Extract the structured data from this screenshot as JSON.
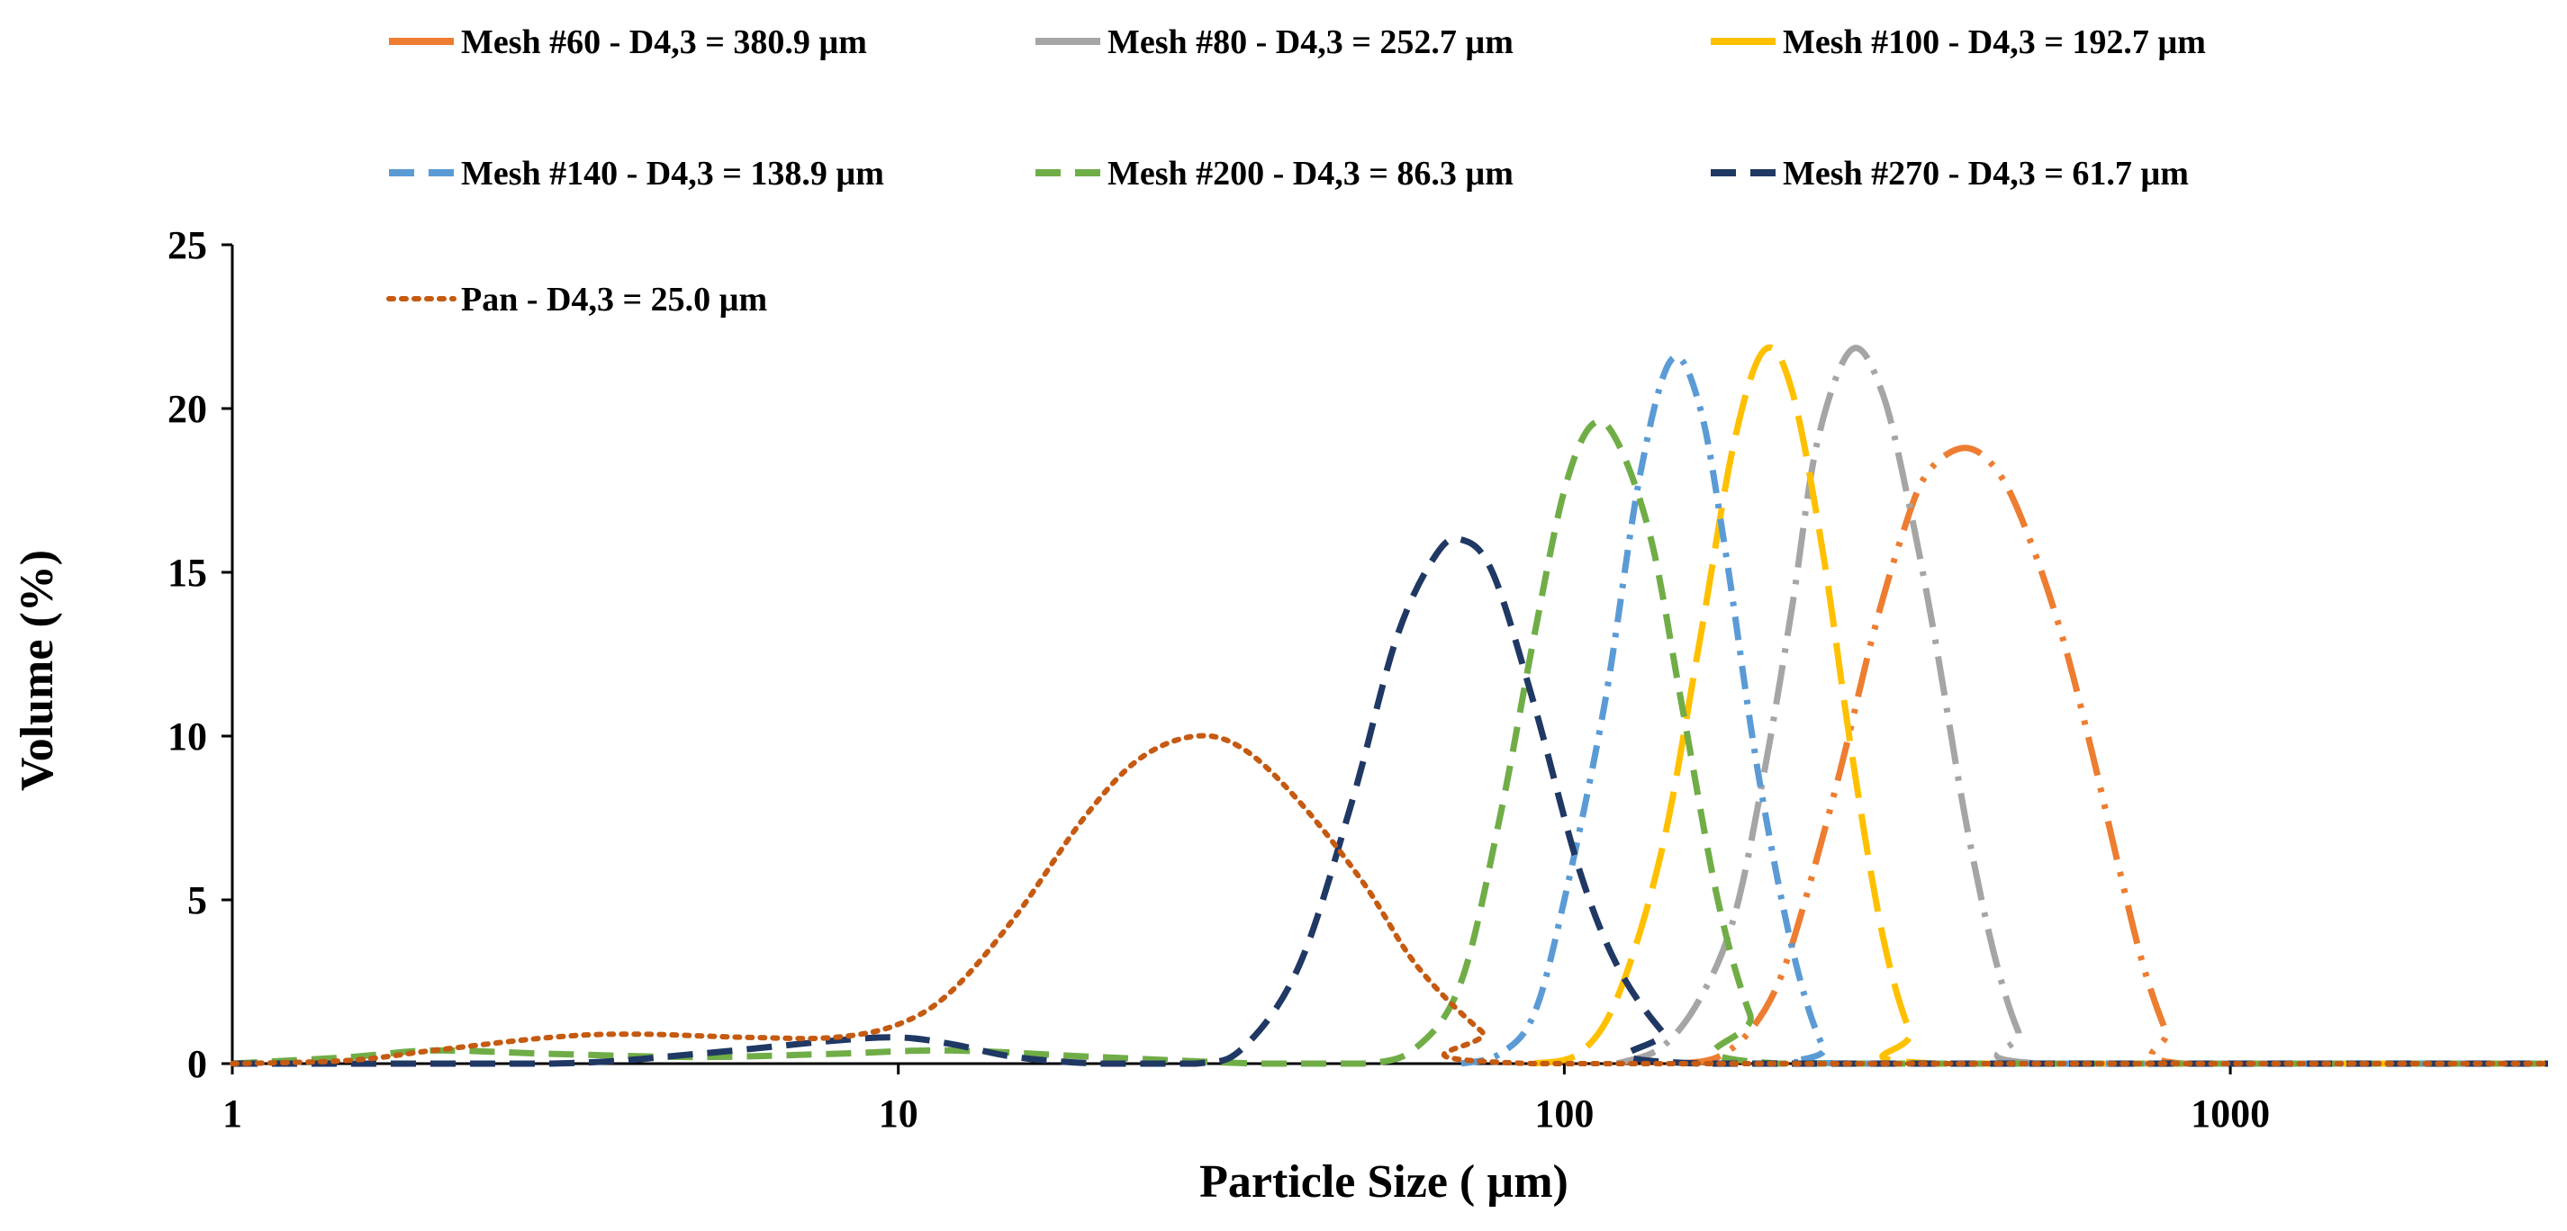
{
  "chart_data": {
    "type": "line",
    "title": "",
    "xlabel": "Particle Size ( µm)",
    "ylabel": "Volume (%)",
    "xscale": "log",
    "xlim": [
      1,
      3000
    ],
    "ylim": [
      0,
      25
    ],
    "x_ticks": [
      1,
      10,
      100,
      1000
    ],
    "x_tick_labels": [
      "1",
      "10",
      "100",
      "1000"
    ],
    "y_ticks": [
      0,
      5,
      10,
      15,
      20,
      25
    ],
    "y_tick_labels": [
      "0",
      "5",
      "10",
      "15",
      "20",
      "25"
    ],
    "grid": false,
    "legend_position": "top",
    "series": [
      {
        "name": "Mesh #60 - D4,3 = 380.9  µm",
        "color": "#ED7D31",
        "dash": "long-dash-dot-dot",
        "points": [
          [
            150,
            0
          ],
          [
            170,
            0.2
          ],
          [
            190,
            1
          ],
          [
            210,
            2.5
          ],
          [
            230,
            5
          ],
          [
            260,
            9
          ],
          [
            290,
            13
          ],
          [
            320,
            16
          ],
          [
            350,
            18
          ],
          [
            400,
            18.8
          ],
          [
            450,
            18
          ],
          [
            500,
            16
          ],
          [
            560,
            13
          ],
          [
            620,
            9.5
          ],
          [
            680,
            6
          ],
          [
            740,
            3
          ],
          [
            800,
            1
          ],
          [
            850,
            0
          ],
          [
            3000,
            0
          ]
        ]
      },
      {
        "name": "Mesh #80 - D4,3 = 252.7 µm",
        "color": "#A5A5A5",
        "dash": "long-dash-dot",
        "points": [
          [
            120,
            0
          ],
          [
            140,
            0.5
          ],
          [
            160,
            2
          ],
          [
            180,
            4.5
          ],
          [
            200,
            9
          ],
          [
            220,
            14
          ],
          [
            240,
            19
          ],
          [
            270,
            21.8
          ],
          [
            300,
            20.5
          ],
          [
            330,
            17
          ],
          [
            360,
            13
          ],
          [
            400,
            7.5
          ],
          [
            440,
            3.5
          ],
          [
            480,
            1
          ],
          [
            520,
            0
          ],
          [
            3000,
            0
          ]
        ]
      },
      {
        "name": "Mesh #100 - D4,3 = 192.7 µm",
        "color": "#FFC000",
        "dash": "long-dash",
        "points": [
          [
            90,
            0
          ],
          [
            105,
            0.3
          ],
          [
            120,
            2
          ],
          [
            140,
            6.5
          ],
          [
            160,
            13
          ],
          [
            180,
            19
          ],
          [
            200,
            21.8
          ],
          [
            220,
            20.5
          ],
          [
            245,
            15.5
          ],
          [
            270,
            9.5
          ],
          [
            300,
            4
          ],
          [
            330,
            1
          ],
          [
            360,
            0
          ],
          [
            3000,
            0
          ]
        ]
      },
      {
        "name": "Mesh #140 - D4,3 = 138.9 µm",
        "color": "#5B9BD5",
        "dash": "dash-dot",
        "points": [
          [
            70,
            0
          ],
          [
            80,
            0.3
          ],
          [
            90,
            1.5
          ],
          [
            100,
            5
          ],
          [
            115,
            11
          ],
          [
            130,
            18
          ],
          [
            145,
            21.5
          ],
          [
            160,
            20
          ],
          [
            175,
            15.5
          ],
          [
            195,
            9
          ],
          [
            220,
            3.5
          ],
          [
            245,
            0.5
          ],
          [
            270,
            0
          ],
          [
            3000,
            0
          ]
        ]
      },
      {
        "name": "Mesh #200 - D4,3 = 86.3 µm",
        "color": "#70AD47",
        "dash": "dash",
        "points": [
          [
            1,
            0
          ],
          [
            1.5,
            0.2
          ],
          [
            2,
            0.4
          ],
          [
            3,
            0.3
          ],
          [
            5,
            0.2
          ],
          [
            8,
            0.3
          ],
          [
            12,
            0.4
          ],
          [
            20,
            0.2
          ],
          [
            35,
            0
          ],
          [
            50,
            0
          ],
          [
            60,
            0.5
          ],
          [
            70,
            2.5
          ],
          [
            80,
            7.5
          ],
          [
            90,
            13
          ],
          [
            100,
            17.5
          ],
          [
            110,
            19.5
          ],
          [
            120,
            19
          ],
          [
            135,
            16
          ],
          [
            150,
            11
          ],
          [
            170,
            5
          ],
          [
            190,
            1.5
          ],
          [
            210,
            0
          ],
          [
            3000,
            0
          ]
        ]
      },
      {
        "name": "Mesh #270 - D4,3 = 61.7 µm",
        "color": "#203864",
        "dash": "dash",
        "points": [
          [
            1,
            0
          ],
          [
            3,
            0
          ],
          [
            5,
            0.3
          ],
          [
            8,
            0.7
          ],
          [
            10,
            0.8
          ],
          [
            12,
            0.6
          ],
          [
            15,
            0.2
          ],
          [
            20,
            0
          ],
          [
            28,
            0
          ],
          [
            33,
            0.5
          ],
          [
            40,
            3
          ],
          [
            48,
            8
          ],
          [
            56,
            13
          ],
          [
            64,
            15.5
          ],
          [
            70,
            16
          ],
          [
            78,
            15
          ],
          [
            90,
            11
          ],
          [
            105,
            6
          ],
          [
            120,
            3
          ],
          [
            140,
            1
          ],
          [
            160,
            0
          ],
          [
            3000,
            0
          ]
        ]
      },
      {
        "name": "Pan - D4,3 = 25.0  µm",
        "color": "#C55A11",
        "dash": "dot",
        "points": [
          [
            1,
            0
          ],
          [
            1.5,
            0.1
          ],
          [
            2,
            0.4
          ],
          [
            3,
            0.8
          ],
          [
            4,
            0.9
          ],
          [
            6,
            0.8
          ],
          [
            8,
            0.8
          ],
          [
            10,
            1.2
          ],
          [
            12,
            2.2
          ],
          [
            15,
            4.5
          ],
          [
            19,
            7.5
          ],
          [
            23,
            9.3
          ],
          [
            28,
            10
          ],
          [
            33,
            9.6
          ],
          [
            40,
            8
          ],
          [
            50,
            5.5
          ],
          [
            60,
            3
          ],
          [
            75,
            1
          ],
          [
            90,
            0
          ],
          [
            3000,
            0
          ]
        ]
      }
    ]
  }
}
